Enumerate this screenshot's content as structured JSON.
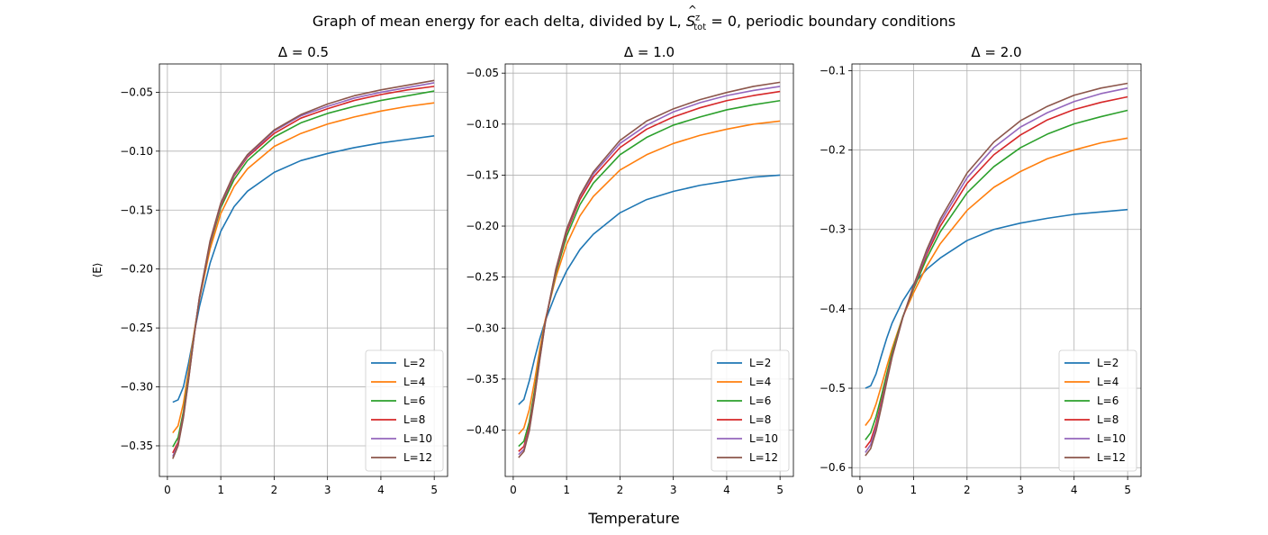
{
  "figure": {
    "suptitle_prefix": "Graph of mean energy for each delta, divided by L,",
    "suptitle_math_S": "S",
    "suptitle_math_sup": "z",
    "suptitle_math_sub": "tot",
    "suptitle_math_eq": " = 0",
    "suptitle_suffix": ", periodic boundary conditions",
    "xlabel": "Temperature",
    "ylabel": "⟨E⟩"
  },
  "colors": {
    "L=2": "#1f77b4",
    "L=4": "#ff7f0e",
    "L=6": "#2ca02c",
    "L=8": "#d62728",
    "L=10": "#9467bd",
    "L=12": "#8c564b",
    "grid": "#b0b0b0"
  },
  "chart_data": [
    {
      "type": "line",
      "title": "Δ = 0.5",
      "xlim": [
        -0.15,
        5.25
      ],
      "ylim": [
        -0.376,
        -0.026
      ],
      "xticks": [
        0,
        1,
        2,
        3,
        4,
        5
      ],
      "xtick_labels": [
        "0",
        "1",
        "2",
        "3",
        "4",
        "5"
      ],
      "yticks": [
        -0.35,
        -0.3,
        -0.25,
        -0.2,
        -0.15,
        -0.1,
        -0.05
      ],
      "ytick_labels": [
        "−0.35",
        "−0.30",
        "−0.25",
        "−0.20",
        "−0.15",
        "−0.10",
        "−0.05"
      ],
      "grid": true,
      "legend": "lower right",
      "series": [
        {
          "name": "L=2",
          "x": [
            0.1,
            0.2,
            0.3,
            0.4,
            0.5,
            0.6,
            0.8,
            1.0,
            1.25,
            1.5,
            2.0,
            2.5,
            3.0,
            3.5,
            4.0,
            4.5,
            5.0
          ],
          "y": [
            -0.313,
            -0.311,
            -0.3,
            -0.279,
            -0.255,
            -0.232,
            -0.195,
            -0.168,
            -0.147,
            -0.134,
            -0.118,
            -0.108,
            -0.102,
            -0.097,
            -0.093,
            -0.09,
            -0.087
          ]
        },
        {
          "name": "L=4",
          "x": [
            0.1,
            0.2,
            0.3,
            0.4,
            0.5,
            0.6,
            0.8,
            1.0,
            1.25,
            1.5,
            2.0,
            2.5,
            3.0,
            3.5,
            4.0,
            4.5,
            5.0
          ],
          "y": [
            -0.339,
            -0.333,
            -0.314,
            -0.285,
            -0.254,
            -0.226,
            -0.183,
            -0.153,
            -0.13,
            -0.115,
            -0.096,
            -0.085,
            -0.077,
            -0.071,
            -0.066,
            -0.062,
            -0.059
          ]
        },
        {
          "name": "L=6",
          "x": [
            0.1,
            0.2,
            0.3,
            0.4,
            0.5,
            0.6,
            0.8,
            1.0,
            1.25,
            1.5,
            2.0,
            2.5,
            3.0,
            3.5,
            4.0,
            4.5,
            5.0
          ],
          "y": [
            -0.351,
            -0.343,
            -0.321,
            -0.29,
            -0.256,
            -0.225,
            -0.179,
            -0.148,
            -0.124,
            -0.108,
            -0.088,
            -0.076,
            -0.068,
            -0.062,
            -0.057,
            -0.053,
            -0.049
          ]
        },
        {
          "name": "L=8",
          "x": [
            0.1,
            0.2,
            0.3,
            0.4,
            0.5,
            0.6,
            0.8,
            1.0,
            1.25,
            1.5,
            2.0,
            2.5,
            3.0,
            3.5,
            4.0,
            4.5,
            5.0
          ],
          "y": [
            -0.356,
            -0.347,
            -0.324,
            -0.292,
            -0.257,
            -0.225,
            -0.178,
            -0.146,
            -0.121,
            -0.105,
            -0.085,
            -0.072,
            -0.064,
            -0.057,
            -0.052,
            -0.048,
            -0.045
          ]
        },
        {
          "name": "L=10",
          "x": [
            0.1,
            0.2,
            0.3,
            0.4,
            0.5,
            0.6,
            0.8,
            1.0,
            1.25,
            1.5,
            2.0,
            2.5,
            3.0,
            3.5,
            4.0,
            4.5,
            5.0
          ],
          "y": [
            -0.359,
            -0.349,
            -0.325,
            -0.292,
            -0.257,
            -0.224,
            -0.177,
            -0.145,
            -0.12,
            -0.104,
            -0.083,
            -0.07,
            -0.062,
            -0.055,
            -0.05,
            -0.046,
            -0.042
          ]
        },
        {
          "name": "L=12",
          "x": [
            0.1,
            0.2,
            0.3,
            0.4,
            0.5,
            0.6,
            0.8,
            1.0,
            1.25,
            1.5,
            2.0,
            2.5,
            3.0,
            3.5,
            4.0,
            4.5,
            5.0
          ],
          "y": [
            -0.361,
            -0.35,
            -0.326,
            -0.293,
            -0.257,
            -0.224,
            -0.176,
            -0.144,
            -0.119,
            -0.103,
            -0.082,
            -0.069,
            -0.06,
            -0.053,
            -0.048,
            -0.044,
            -0.04
          ]
        }
      ]
    },
    {
      "type": "line",
      "title": "Δ = 1.0",
      "xlim": [
        -0.15,
        5.25
      ],
      "ylim": [
        -0.4455,
        -0.041
      ],
      "xticks": [
        0,
        1,
        2,
        3,
        4,
        5
      ],
      "xtick_labels": [
        "0",
        "1",
        "2",
        "3",
        "4",
        "5"
      ],
      "yticks": [
        -0.4,
        -0.35,
        -0.3,
        -0.25,
        -0.2,
        -0.15,
        -0.1,
        -0.05
      ],
      "ytick_labels": [
        "−0.40",
        "−0.35",
        "−0.30",
        "−0.25",
        "−0.20",
        "−0.15",
        "−0.10",
        "−0.05"
      ],
      "grid": true,
      "legend": "lower right",
      "series": [
        {
          "name": "L=2",
          "x": [
            0.1,
            0.2,
            0.3,
            0.4,
            0.5,
            0.6,
            0.8,
            1.0,
            1.25,
            1.5,
            2.0,
            2.5,
            3.0,
            3.5,
            4.0,
            4.5,
            5.0
          ],
          "y": [
            -0.375,
            -0.37,
            -0.352,
            -0.33,
            -0.31,
            -0.293,
            -0.266,
            -0.244,
            -0.223,
            -0.208,
            -0.187,
            -0.174,
            -0.166,
            -0.16,
            -0.156,
            -0.152,
            -0.15
          ]
        },
        {
          "name": "L=4",
          "x": [
            0.1,
            0.2,
            0.3,
            0.4,
            0.5,
            0.6,
            0.8,
            1.0,
            1.25,
            1.5,
            2.0,
            2.5,
            3.0,
            3.5,
            4.0,
            4.5,
            5.0
          ],
          "y": [
            -0.404,
            -0.398,
            -0.38,
            -0.352,
            -0.32,
            -0.292,
            -0.25,
            -0.218,
            -0.19,
            -0.171,
            -0.145,
            -0.13,
            -0.119,
            -0.111,
            -0.105,
            -0.1,
            -0.097
          ]
        },
        {
          "name": "L=6",
          "x": [
            0.1,
            0.2,
            0.3,
            0.4,
            0.5,
            0.6,
            0.8,
            1.0,
            1.25,
            1.5,
            2.0,
            2.5,
            3.0,
            3.5,
            4.0,
            4.5,
            5.0
          ],
          "y": [
            -0.416,
            -0.411,
            -0.392,
            -0.361,
            -0.326,
            -0.294,
            -0.246,
            -0.21,
            -0.179,
            -0.158,
            -0.13,
            -0.113,
            -0.101,
            -0.093,
            -0.086,
            -0.081,
            -0.077
          ]
        },
        {
          "name": "L=8",
          "x": [
            0.1,
            0.2,
            0.3,
            0.4,
            0.5,
            0.6,
            0.8,
            1.0,
            1.25,
            1.5,
            2.0,
            2.5,
            3.0,
            3.5,
            4.0,
            4.5,
            5.0
          ],
          "y": [
            -0.421,
            -0.416,
            -0.397,
            -0.365,
            -0.328,
            -0.294,
            -0.244,
            -0.206,
            -0.174,
            -0.152,
            -0.123,
            -0.105,
            -0.093,
            -0.084,
            -0.077,
            -0.072,
            -0.068
          ]
        },
        {
          "name": "L=10",
          "x": [
            0.1,
            0.2,
            0.3,
            0.4,
            0.5,
            0.6,
            0.8,
            1.0,
            1.25,
            1.5,
            2.0,
            2.5,
            3.0,
            3.5,
            4.0,
            4.5,
            5.0
          ],
          "y": [
            -0.424,
            -0.419,
            -0.4,
            -0.367,
            -0.33,
            -0.295,
            -0.243,
            -0.204,
            -0.171,
            -0.149,
            -0.119,
            -0.101,
            -0.088,
            -0.079,
            -0.072,
            -0.067,
            -0.063
          ]
        },
        {
          "name": "L=12",
          "x": [
            0.1,
            0.2,
            0.3,
            0.4,
            0.5,
            0.6,
            0.8,
            1.0,
            1.25,
            1.5,
            2.0,
            2.5,
            3.0,
            3.5,
            4.0,
            4.5,
            5.0
          ],
          "y": [
            -0.427,
            -0.421,
            -0.401,
            -0.368,
            -0.33,
            -0.295,
            -0.242,
            -0.203,
            -0.17,
            -0.147,
            -0.116,
            -0.097,
            -0.085,
            -0.076,
            -0.069,
            -0.063,
            -0.059
          ]
        }
      ]
    },
    {
      "type": "line",
      "title": "Δ = 2.0",
      "xlim": [
        -0.15,
        5.25
      ],
      "ylim": [
        -0.6111,
        -0.0916
      ],
      "xticks": [
        0,
        1,
        2,
        3,
        4,
        5
      ],
      "xtick_labels": [
        "0",
        "1",
        "2",
        "3",
        "4",
        "5"
      ],
      "yticks": [
        -0.6,
        -0.5,
        -0.4,
        -0.3,
        -0.2,
        -0.1
      ],
      "ytick_labels": [
        "−0.6",
        "−0.5",
        "−0.4",
        "−0.3",
        "−0.2",
        "−0.1"
      ],
      "grid": true,
      "legend": "lower right",
      "series": [
        {
          "name": "L=2",
          "x": [
            0.1,
            0.2,
            0.3,
            0.4,
            0.5,
            0.6,
            0.8,
            1.0,
            1.25,
            1.5,
            2.0,
            2.5,
            3.0,
            3.5,
            4.0,
            4.5,
            5.0
          ],
          "y": [
            -0.5,
            -0.497,
            -0.482,
            -0.459,
            -0.437,
            -0.418,
            -0.39,
            -0.369,
            -0.35,
            -0.336,
            -0.314,
            -0.3,
            -0.292,
            -0.286,
            -0.281,
            -0.278,
            -0.275
          ]
        },
        {
          "name": "L=4",
          "x": [
            0.1,
            0.2,
            0.3,
            0.4,
            0.5,
            0.6,
            0.8,
            1.0,
            1.25,
            1.5,
            2.0,
            2.5,
            3.0,
            3.5,
            4.0,
            4.5,
            5.0
          ],
          "y": [
            -0.547,
            -0.538,
            -0.52,
            -0.497,
            -0.473,
            -0.45,
            -0.41,
            -0.38,
            -0.346,
            -0.318,
            -0.276,
            -0.247,
            -0.227,
            -0.211,
            -0.2,
            -0.191,
            -0.185
          ]
        },
        {
          "name": "L=6",
          "x": [
            0.1,
            0.2,
            0.3,
            0.4,
            0.5,
            0.6,
            0.8,
            1.0,
            1.25,
            1.5,
            2.0,
            2.5,
            3.0,
            3.5,
            4.0,
            4.5,
            5.0
          ],
          "y": [
            -0.565,
            -0.556,
            -0.536,
            -0.51,
            -0.482,
            -0.455,
            -0.41,
            -0.375,
            -0.336,
            -0.303,
            -0.254,
            -0.221,
            -0.197,
            -0.18,
            -0.167,
            -0.158,
            -0.15
          ]
        },
        {
          "name": "L=8",
          "x": [
            0.1,
            0.2,
            0.3,
            0.4,
            0.5,
            0.6,
            0.8,
            1.0,
            1.25,
            1.5,
            2.0,
            2.5,
            3.0,
            3.5,
            4.0,
            4.5,
            5.0
          ],
          "y": [
            -0.575,
            -0.566,
            -0.545,
            -0.517,
            -0.488,
            -0.459,
            -0.411,
            -0.373,
            -0.331,
            -0.296,
            -0.242,
            -0.206,
            -0.181,
            -0.162,
            -0.149,
            -0.14,
            -0.133
          ]
        },
        {
          "name": "L=10",
          "x": [
            0.1,
            0.2,
            0.3,
            0.4,
            0.5,
            0.6,
            0.8,
            1.0,
            1.25,
            1.5,
            2.0,
            2.5,
            3.0,
            3.5,
            4.0,
            4.5,
            5.0
          ],
          "y": [
            -0.581,
            -0.571,
            -0.55,
            -0.521,
            -0.49,
            -0.46,
            -0.411,
            -0.372,
            -0.328,
            -0.291,
            -0.235,
            -0.197,
            -0.171,
            -0.153,
            -0.139,
            -0.129,
            -0.122
          ]
        },
        {
          "name": "L=12",
          "x": [
            0.1,
            0.2,
            0.3,
            0.4,
            0.5,
            0.6,
            0.8,
            1.0,
            1.25,
            1.5,
            2.0,
            2.5,
            3.0,
            3.5,
            4.0,
            4.5,
            5.0
          ],
          "y": [
            -0.585,
            -0.576,
            -0.554,
            -0.524,
            -0.492,
            -0.461,
            -0.411,
            -0.371,
            -0.325,
            -0.287,
            -0.229,
            -0.19,
            -0.163,
            -0.145,
            -0.131,
            -0.122,
            -0.116
          ]
        }
      ]
    }
  ]
}
